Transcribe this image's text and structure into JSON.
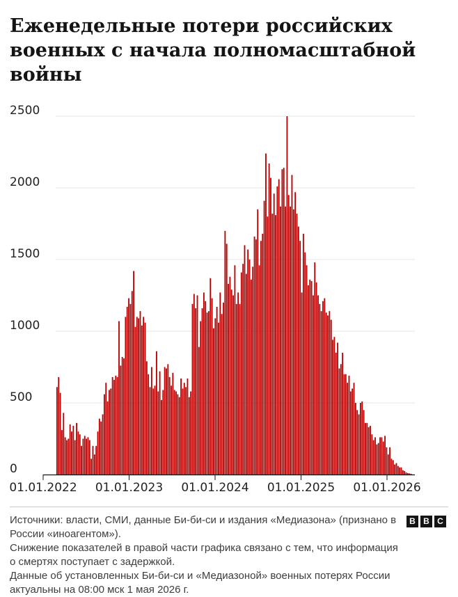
{
  "title": "Еженедельные потери российских военных с начала полномасштабной войны",
  "footer": {
    "sources": "Источники: власти, СМИ, данные Би-би-си и издания «Медиазона» (признано в России «иноагентом»).",
    "note1": "Снижение показателей в правой части графика связано с тем, что информация о смертях поступает с задержкой.",
    "note2": "Данные об установленных Би-би-си и «Медиазоной» военных потерях России актуальны на 08:00 мск 1 мая 2026 г."
  },
  "logo": {
    "letters": [
      "B",
      "B",
      "C"
    ],
    "bg": "#141414"
  },
  "chart_data": {
    "type": "bar",
    "title": "Еженедельные потери российских военных с начала полномасштабной войны",
    "xlabel": "",
    "ylabel": "",
    "bar_color": "#b80000",
    "grid": true,
    "x_ticks": [
      "01.01.2022",
      "01.01.2023",
      "01.01.2024",
      "01.01.2025",
      "01.01.2026"
    ],
    "y_ticks": [
      0,
      500,
      1000,
      1500,
      2000,
      2500
    ],
    "ylim": [
      0,
      2500
    ],
    "x_start": "2022-02-21",
    "values": [
      610,
      680,
      570,
      310,
      430,
      260,
      240,
      250,
      350,
      300,
      340,
      240,
      360,
      300,
      280,
      200,
      250,
      270,
      250,
      260,
      240,
      110,
      200,
      140,
      200,
      300,
      390,
      370,
      420,
      560,
      640,
      510,
      590,
      600,
      680,
      660,
      690,
      680,
      1070,
      760,
      820,
      810,
      1100,
      1170,
      1230,
      1190,
      1280,
      1420,
      1030,
      1100,
      1090,
      1140,
      1040,
      1100,
      1060,
      790,
      700,
      610,
      750,
      600,
      620,
      860,
      580,
      720,
      520,
      590,
      750,
      740,
      770,
      680,
      620,
      710,
      590,
      580,
      560,
      540,
      670,
      600,
      640,
      610,
      670,
      540,
      580,
      1190,
      1260,
      1160,
      1250,
      890,
      1070,
      1160,
      1270,
      1210,
      1130,
      1140,
      1370,
      1230,
      1020,
      1090,
      1170,
      1060,
      1270,
      1120,
      1200,
      1700,
      1610,
      1330,
      1380,
      1290,
      1250,
      1460,
      1190,
      1270,
      1190,
      1410,
      1470,
      1600,
      1400,
      1570,
      1500,
      1360,
      1450,
      1660,
      1640,
      1850,
      1460,
      1630,
      1680,
      1910,
      2240,
      1800,
      2170,
      2070,
      1820,
      1960,
      1810,
      2010,
      2060,
      1870,
      2130,
      2140,
      1870,
      2500,
      1950,
      1870,
      2090,
      1850,
      1970,
      1820,
      1730,
      1630,
      1270,
      1680,
      1550,
      1460,
      1320,
      1360,
      1350,
      1250,
      1480,
      1340,
      1250,
      1190,
      1140,
      1210,
      1230,
      1130,
      1110,
      1140,
      1080,
      940,
      960,
      850,
      920,
      740,
      770,
      850,
      700,
      700,
      640,
      690,
      580,
      600,
      640,
      500,
      450,
      420,
      500,
      510,
      450,
      360,
      360,
      330,
      340,
      280,
      240,
      260,
      210,
      220,
      260,
      260,
      230,
      270,
      190,
      140,
      190,
      110,
      100,
      70,
      80,
      60,
      50,
      50,
      30,
      25,
      15,
      10,
      8,
      5
    ]
  }
}
